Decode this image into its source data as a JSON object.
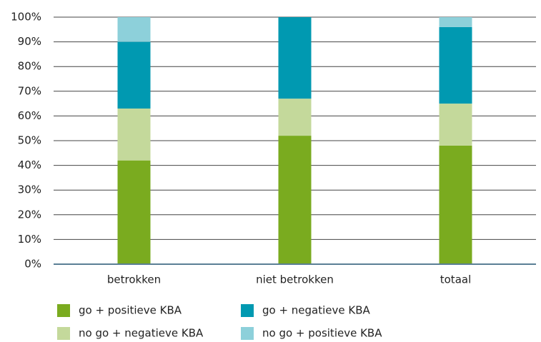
{
  "chart_data": {
    "type": "stacked_bar",
    "categories": [
      "betrokken",
      "niet betrokken",
      "totaal"
    ],
    "series": [
      {
        "name": "go + positieve KBA",
        "color": "#7aab1f",
        "values": [
          42,
          52,
          48
        ]
      },
      {
        "name": "no go + negatieve KBA",
        "color": "#c4d99b",
        "values": [
          21,
          15,
          17
        ]
      },
      {
        "name": "go + negatieve KBA",
        "color": "#0099b1",
        "values": [
          27,
          33,
          31
        ]
      },
      {
        "name": "no go + positieve KBA",
        "color": "#8dd0da",
        "values": [
          10,
          0,
          4
        ]
      }
    ],
    "ylim": [
      0,
      100
    ],
    "yticks": [
      {
        "value": 0,
        "label": "0%"
      },
      {
        "value": 10,
        "label": "10%"
      },
      {
        "value": 20,
        "label": "20%"
      },
      {
        "value": 30,
        "label": "30%"
      },
      {
        "value": 40,
        "label": "40%"
      },
      {
        "value": 50,
        "label": "50%"
      },
      {
        "value": 60,
        "label": "60%"
      },
      {
        "value": 70,
        "label": "70%"
      },
      {
        "value": 80,
        "label": "80%"
      },
      {
        "value": 90,
        "label": "90%"
      },
      {
        "value": 100,
        "label": "100%"
      }
    ],
    "grid": true,
    "legend": "bottom"
  }
}
